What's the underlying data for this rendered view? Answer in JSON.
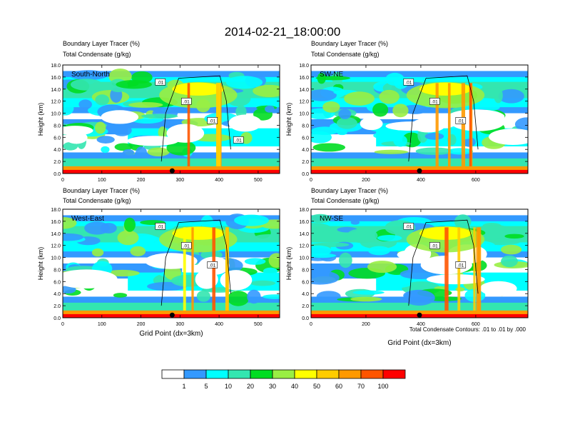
{
  "figure": {
    "title": "2014-02-21_18:00:00",
    "footnote": "Total Condensate Contours: .01 to .01 by .000",
    "colorbar": {
      "colors": [
        "#ffffff",
        "#3399ff",
        "#00ffff",
        "#33e6b0",
        "#00dd22",
        "#99ee44",
        "#ffff00",
        "#ffcc00",
        "#ff9900",
        "#ff5500",
        "#ff0000"
      ],
      "labels": [
        "1",
        "5",
        "10",
        "20",
        "30",
        "40",
        "50",
        "60",
        "70",
        "100"
      ]
    }
  },
  "chart_data": [
    {
      "type": "heatmap",
      "panel": "South-North",
      "title_line1": "Boundary Layer Tracer   (%)",
      "title_line2": "Total Condensate   (g/kg)",
      "ylabel": "Height (km)",
      "xlabel": "",
      "xlim": [
        0,
        555
      ],
      "ylim": [
        0,
        18
      ],
      "xticks": [
        "0",
        "100",
        "200",
        "300",
        "400",
        "500"
      ],
      "yticks": [
        "0.0",
        "2.0",
        "4.0",
        "6.0",
        "8.0",
        "10.0",
        "12.0",
        "14.0",
        "16.0",
        "18.0"
      ],
      "marker_x": 280,
      "contour_labels": [
        ".01",
        ".01",
        ".01",
        ".01"
      ]
    },
    {
      "type": "heatmap",
      "panel": "SW-NE",
      "title_line1": "Boundary Layer Tracer   (%)",
      "title_line2": "Total Condensate   (g/kg)",
      "ylabel": "Height (km)",
      "xlabel": "",
      "xlim": [
        0,
        790
      ],
      "ylim": [
        0,
        18
      ],
      "xticks": [
        "0",
        "200",
        "400",
        "600"
      ],
      "yticks": [
        "0.0",
        "2.0",
        "4.0",
        "6.0",
        "8.0",
        "10.0",
        "12.0",
        "14.0",
        "16.0",
        "18.0"
      ],
      "marker_x": 395,
      "contour_labels": [
        ".01",
        ".01",
        ".01"
      ]
    },
    {
      "type": "heatmap",
      "panel": "West-East",
      "title_line1": "Boundary Layer Tracer   (%)",
      "title_line2": "Total Condensate   (g/kg)",
      "ylabel": "Height (km)",
      "xlabel": "Grid Point (dx=3km)",
      "xlim": [
        0,
        555
      ],
      "ylim": [
        0,
        18
      ],
      "xticks": [
        "0",
        "100",
        "200",
        "300",
        "400",
        "500"
      ],
      "yticks": [
        "0.0",
        "2.0",
        "4.0",
        "6.0",
        "8.0",
        "10.0",
        "12.0",
        "14.0",
        "16.0",
        "18.0"
      ],
      "marker_x": 280,
      "contour_labels": [
        ".01",
        ".01",
        ".01"
      ]
    },
    {
      "type": "heatmap",
      "panel": "NW-SE",
      "title_line1": "Boundary Layer Tracer   (%)",
      "title_line2": "Total Condensate   (g/kg)",
      "ylabel": "Height (km)",
      "xlabel": "Grid Point (dx=3km)",
      "xlim": [
        0,
        790
      ],
      "ylim": [
        0,
        18
      ],
      "xticks": [
        "0",
        "200",
        "400",
        "600"
      ],
      "yticks": [
        "0.0",
        "2.0",
        "4.0",
        "6.0",
        "8.0",
        "10.0",
        "12.0",
        "14.0",
        "16.0",
        "18.0"
      ],
      "marker_x": 395,
      "contour_labels": [
        ".01",
        ".01",
        ".01"
      ]
    }
  ]
}
